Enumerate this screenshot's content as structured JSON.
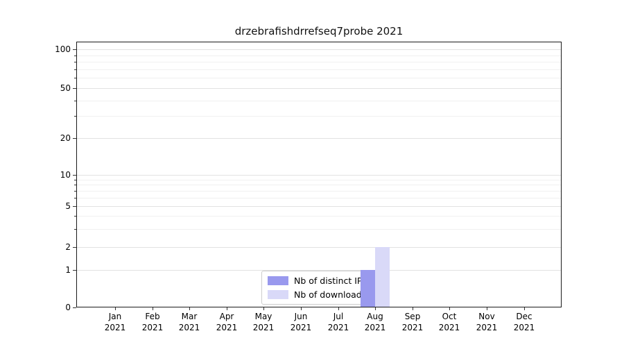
{
  "title": "drzebrafishdrrefseq7probe 2021",
  "colors": {
    "distinct_ips": "#9999ee",
    "downloads": "#d9d9f8",
    "axis": "#1a1a1a",
    "grid_major": "#e2e2e2",
    "grid_minor": "#f0f0f0"
  },
  "chart_data": {
    "type": "bar",
    "title": "drzebrafishdrrefseq7probe 2021",
    "categories": [
      "Jan",
      "Feb",
      "Mar",
      "Apr",
      "May",
      "Jun",
      "Jul",
      "Aug",
      "Sep",
      "Oct",
      "Nov",
      "Dec"
    ],
    "category_year": "2021",
    "series": [
      {
        "name": "Nb of distinct IPs",
        "color": "#9999ee",
        "values": [
          0,
          0,
          0,
          0,
          0,
          0,
          0,
          1,
          0,
          0,
          0,
          0
        ]
      },
      {
        "name": "Nb of downloads",
        "color": "#d9d9f8",
        "values": [
          0,
          0,
          0,
          0,
          0,
          0,
          0,
          2,
          0,
          0,
          0,
          0
        ]
      }
    ],
    "yscale": "symlog",
    "yticks": [
      0,
      1,
      2,
      5,
      10,
      20,
      50,
      100
    ],
    "minor_yticks": [
      3,
      4,
      6,
      7,
      8,
      9,
      30,
      40,
      60,
      70,
      80,
      90
    ],
    "ylim": [
      0,
      130
    ],
    "xlabel": "",
    "ylabel": "",
    "grid": true,
    "legend_position": "lower center"
  }
}
